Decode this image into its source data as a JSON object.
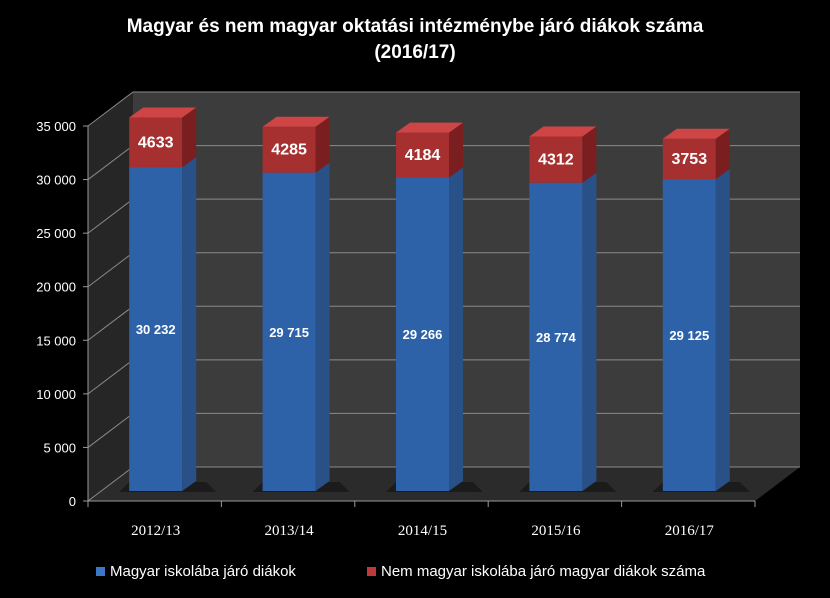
{
  "chart_data": {
    "type": "bar",
    "stacked": true,
    "three_d": true,
    "title": "Magyar és nem magyar oktatási intézménybe járó diákok száma (2016/17)",
    "title_lines": [
      "Magyar és nem magyar oktatási intézménybe járó diákok száma",
      "(2016/17)"
    ],
    "categories": [
      "2012/13",
      "2013/14",
      "2014/15",
      "2015/16",
      "2016/17"
    ],
    "series": [
      {
        "name": "Magyar iskolába járó diákok",
        "values": [
          30232,
          29715,
          29266,
          28774,
          29125
        ],
        "labels": [
          "30 232",
          "29 715",
          "29 266",
          "28 774",
          "29 125"
        ],
        "color": "#3A78C6"
      },
      {
        "name": "Nem magyar iskolába járó magyar diákok száma",
        "values": [
          4633,
          4285,
          4184,
          4312,
          3753
        ],
        "labels": [
          "4633",
          "4285",
          "4184",
          "4312",
          "3753"
        ],
        "color": "#C0393A"
      }
    ],
    "ylim": [
      0,
      35000
    ],
    "yticks": [
      "0",
      "5 000",
      "10 000",
      "15 000",
      "20 000",
      "25 000",
      "30 000",
      "35 000"
    ],
    "grid": true,
    "legend": "bottom",
    "xlabel": "",
    "ylabel": ""
  }
}
